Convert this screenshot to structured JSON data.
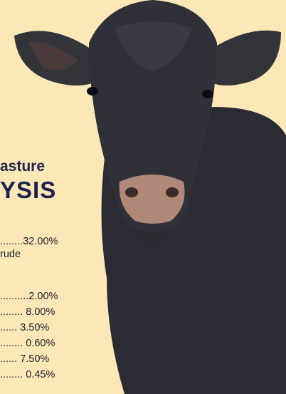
{
  "heading": {
    "line1": "asture",
    "line2": "YSIS"
  },
  "analysis": {
    "lines": [
      "........32.00%",
      "rude",
      "..........2.00%",
      "........ 8.00%",
      "...... 3.50%",
      "........ 0.60%",
      "...... 7.50%",
      "........ 0.45%"
    ]
  }
}
